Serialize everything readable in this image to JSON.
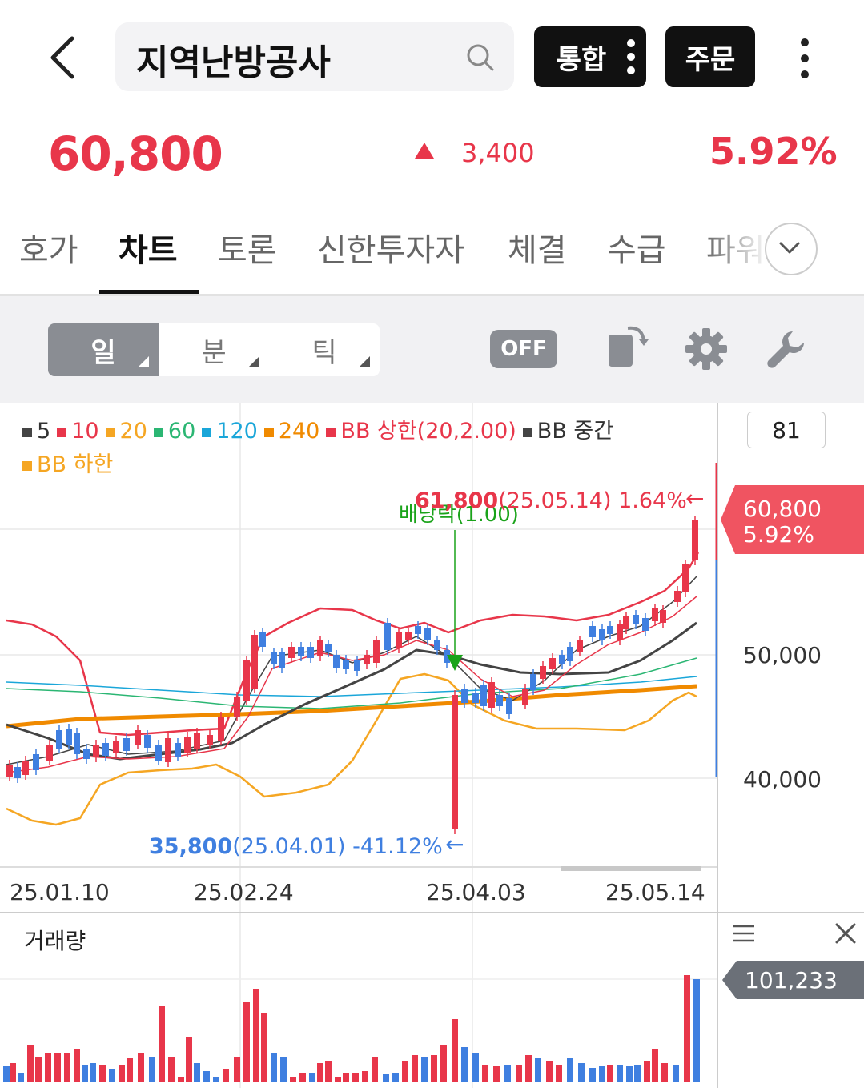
{
  "header": {
    "search_value": "지역난방공사",
    "btn_integrated": "통합",
    "btn_order": "주문"
  },
  "quote": {
    "price": "60,800",
    "change": "3,400",
    "change_pct": "5.92%"
  },
  "tabs": [
    {
      "label": "호가"
    },
    {
      "label": "차트"
    },
    {
      "label": "토론"
    },
    {
      "label": "신한투자자"
    },
    {
      "label": "체결"
    },
    {
      "label": "수급"
    },
    {
      "label": "파워"
    }
  ],
  "toolbar": {
    "period": [
      "일",
      "분",
      "틱"
    ],
    "off_label": "OFF"
  },
  "legend": [
    {
      "label": "5",
      "color": "#444444"
    },
    {
      "label": "10",
      "color": "#e8364a"
    },
    {
      "label": "20",
      "color": "#f5a623"
    },
    {
      "label": "60",
      "color": "#2bb673"
    },
    {
      "label": "120",
      "color": "#1aa6d9"
    },
    {
      "label": "240",
      "color": "#f08a00"
    },
    {
      "label": "BB 상한(20,2.00)",
      "color": "#e8364a"
    },
    {
      "label": "BB 중간",
      "color": "#444444"
    },
    {
      "label": "BB 하한",
      "color": "#f5a623"
    }
  ],
  "chart": {
    "period_count": "81",
    "high_label_price": "61,800",
    "high_label_rest": "(25.05.14) 1.64%",
    "dividend_label": "배당락(1.00)",
    "low_label_price": "35,800",
    "low_label_rest": "(25.04.01) -41.12%",
    "y_ticks": [
      "50,000",
      "40,000"
    ],
    "x_ticks": [
      "25.01.10",
      "25.02.24",
      "25.04.03",
      "25.05.14"
    ],
    "current_price": "60,800",
    "current_pct": "5.92%",
    "up_color": "#e8364a",
    "down_color": "#3f7fe0"
  },
  "volume": {
    "title": "거래량",
    "current": "101,233"
  }
}
